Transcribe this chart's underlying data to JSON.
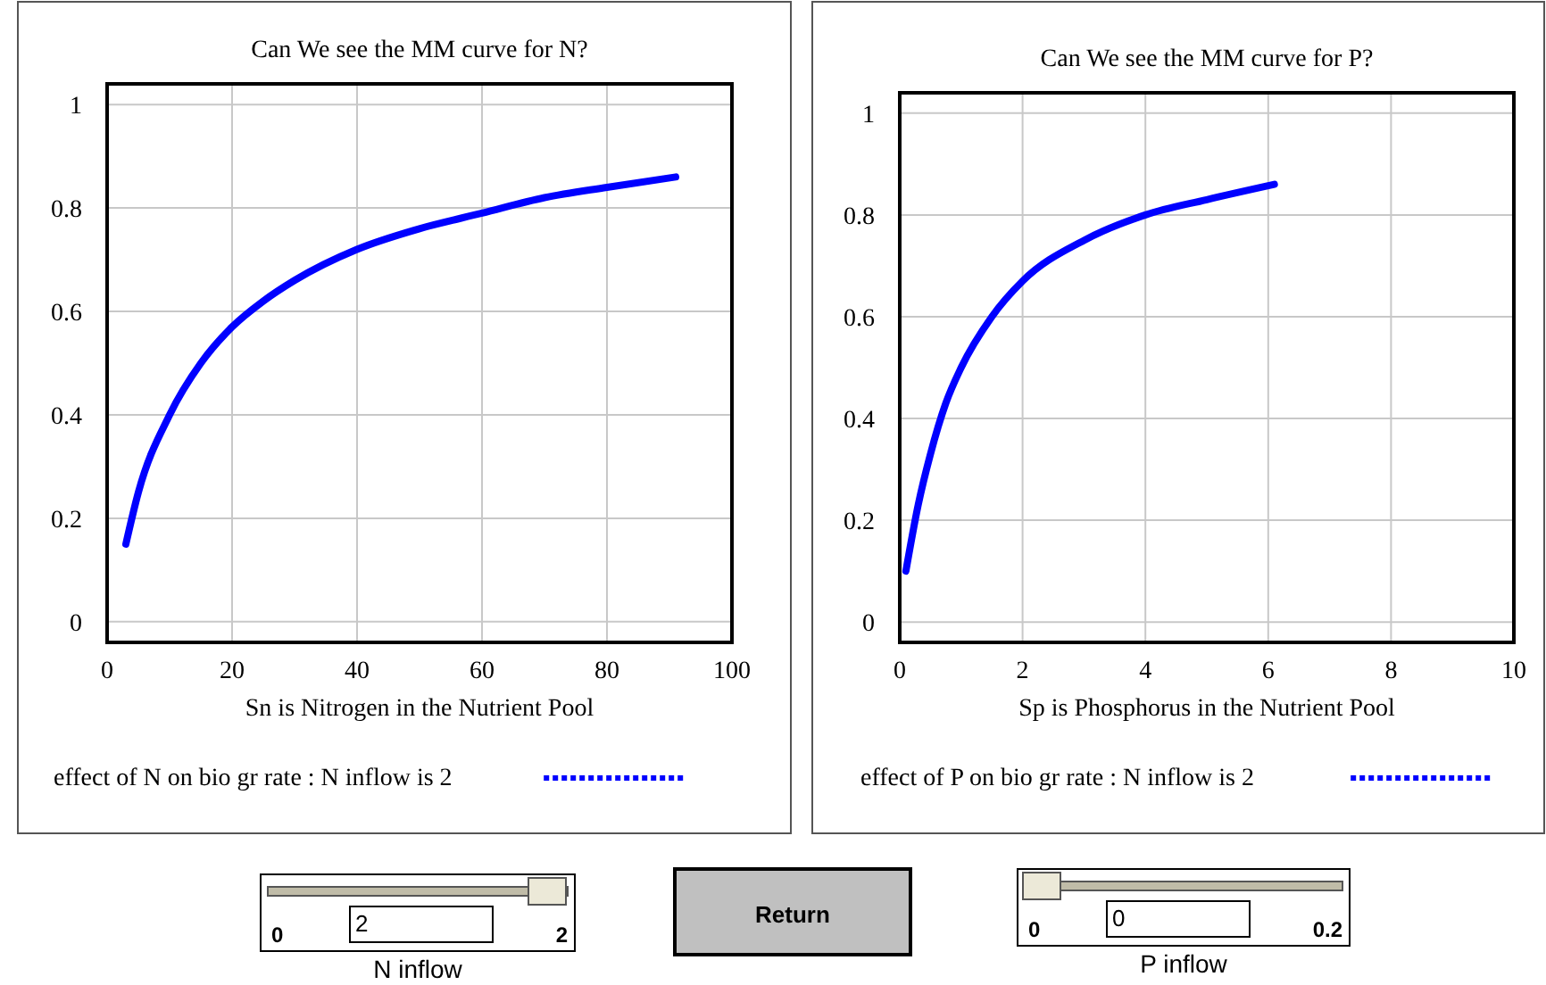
{
  "chart_data": [
    {
      "type": "line",
      "title": "Can We see the MM curve for N?",
      "xlabel": "Sn is Nitrogen in the Nutrient Pool",
      "x": [
        3,
        5,
        10,
        15,
        20,
        25,
        30,
        40,
        50,
        60,
        70,
        80,
        91
      ],
      "series": [
        {
          "name": "effect of N on bio gr rate : N inflow is 2",
          "color": "#0000ff",
          "values": [
            0.15,
            0.25,
            0.4,
            0.5,
            0.57,
            0.62,
            0.66,
            0.72,
            0.76,
            0.79,
            0.82,
            0.84,
            0.86
          ]
        }
      ],
      "xlim": [
        0,
        100
      ],
      "xticks": [
        0,
        20,
        40,
        60,
        80,
        100
      ],
      "ylim": [
        -0.04,
        1.04
      ],
      "yticks": [
        0,
        0.2,
        0.4,
        0.6,
        0.8,
        1
      ],
      "grid": true,
      "legend": "bottom",
      "marker": "none",
      "line_style": "solid"
    },
    {
      "type": "line",
      "title": "Can We see the MM curve for P?",
      "xlabel": "Sp is Phosphorus  in the Nutrient Pool",
      "x": [
        0.1,
        0.3,
        0.5,
        0.75,
        1,
        1.5,
        2,
        3,
        4,
        5,
        6.1
      ],
      "series": [
        {
          "name": "effect of P on bio gr rate : N inflow is 2",
          "color": "#0000ff",
          "values": [
            0.1,
            0.23,
            0.33,
            0.43,
            0.5,
            0.6,
            0.67,
            0.75,
            0.8,
            0.83,
            0.86
          ]
        }
      ],
      "xlim": [
        0,
        10
      ],
      "xticks": [
        0,
        2,
        4,
        6,
        8,
        10
      ],
      "ylim": [
        -0.04,
        1.04
      ],
      "yticks": [
        0,
        0.2,
        0.4,
        0.6,
        0.8,
        1
      ],
      "grid": true,
      "legend": "bottom",
      "marker": "none",
      "line_style": "solid"
    },
    {
      "type": "other",
      "annotations": [
        "0",
        "2",
        "2",
        "N inflow",
        "Return",
        "0",
        "0",
        "0.2",
        "P inflow"
      ]
    }
  ]
}
